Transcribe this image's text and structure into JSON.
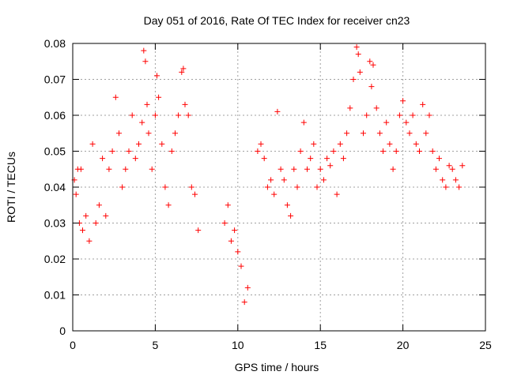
{
  "chart_data": {
    "type": "scatter",
    "title": "Day 051 of 2016, Rate Of TEC Index for receiver cn23",
    "xlabel": "GPS time / hours",
    "ylabel": "ROTI / TECUs",
    "xlim": [
      0,
      25
    ],
    "ylim": [
      0,
      0.08
    ],
    "xticks": [
      0,
      5,
      10,
      15,
      20,
      25
    ],
    "xtick_labels": [
      "0",
      "5",
      "10",
      "15",
      "20",
      "25"
    ],
    "yticks": [
      0,
      0.01,
      0.02,
      0.03,
      0.04,
      0.05,
      0.06,
      0.07,
      0.08
    ],
    "ytick_labels": [
      "0",
      "0.01",
      "0.02",
      "0.03",
      "0.04",
      "0.05",
      "0.06",
      "0.07",
      "0.08"
    ],
    "grid": true,
    "marker": "+",
    "marker_color": "#ff0000",
    "series": [
      {
        "x": [
          0.1,
          0.2,
          0.3,
          0.4,
          0.5,
          0.6,
          0.8,
          1.0,
          1.2,
          1.4,
          1.6,
          1.8,
          2.0,
          2.2,
          2.4,
          2.6,
          2.8,
          3.0,
          3.2,
          3.4,
          3.6,
          3.8,
          4.0,
          4.2,
          4.3,
          4.4,
          4.5,
          4.6,
          4.8,
          5.0,
          5.1,
          5.2,
          5.4,
          5.6,
          5.8,
          6.0,
          6.2,
          6.4,
          6.6,
          6.7,
          6.8,
          7.0,
          7.2,
          7.4,
          7.6,
          9.2,
          9.4,
          9.6,
          9.8,
          10.0,
          10.2,
          10.4,
          10.6,
          11.2,
          11.4,
          11.6,
          11.8,
          12.0,
          12.2,
          12.4,
          12.6,
          12.8,
          13.0,
          13.2,
          13.4,
          13.6,
          13.8,
          14.0,
          14.2,
          14.4,
          14.6,
          14.8,
          15.0,
          15.2,
          15.4,
          15.6,
          15.8,
          16.0,
          16.2,
          16.4,
          16.6,
          16.8,
          17.0,
          17.2,
          17.3,
          17.4,
          17.6,
          17.8,
          18.0,
          18.1,
          18.2,
          18.4,
          18.6,
          18.8,
          19.0,
          19.2,
          19.4,
          19.6,
          19.8,
          20.0,
          20.2,
          20.4,
          20.6,
          20.8,
          21.0,
          21.2,
          21.4,
          21.6,
          21.8,
          22.0,
          22.2,
          22.4,
          22.6,
          22.8,
          23.0,
          23.2,
          23.4,
          23.6
        ],
        "y": [
          0.042,
          0.038,
          0.045,
          0.03,
          0.045,
          0.028,
          0.032,
          0.025,
          0.052,
          0.03,
          0.035,
          0.048,
          0.032,
          0.045,
          0.05,
          0.065,
          0.055,
          0.04,
          0.045,
          0.05,
          0.06,
          0.048,
          0.052,
          0.058,
          0.078,
          0.075,
          0.063,
          0.055,
          0.045,
          0.06,
          0.071,
          0.065,
          0.052,
          0.04,
          0.035,
          0.05,
          0.055,
          0.06,
          0.072,
          0.073,
          0.063,
          0.06,
          0.04,
          0.038,
          0.028,
          0.03,
          0.035,
          0.025,
          0.028,
          0.022,
          0.018,
          0.008,
          0.012,
          0.05,
          0.052,
          0.048,
          0.04,
          0.042,
          0.038,
          0.061,
          0.045,
          0.042,
          0.035,
          0.032,
          0.045,
          0.04,
          0.05,
          0.058,
          0.045,
          0.048,
          0.052,
          0.04,
          0.045,
          0.042,
          0.048,
          0.046,
          0.05,
          0.038,
          0.052,
          0.048,
          0.055,
          0.062,
          0.07,
          0.079,
          0.077,
          0.072,
          0.055,
          0.06,
          0.075,
          0.068,
          0.074,
          0.062,
          0.055,
          0.05,
          0.058,
          0.052,
          0.045,
          0.05,
          0.06,
          0.064,
          0.058,
          0.055,
          0.06,
          0.052,
          0.05,
          0.063,
          0.055,
          0.06,
          0.05,
          0.045,
          0.048,
          0.042,
          0.04,
          0.046,
          0.045,
          0.042,
          0.04,
          0.046
        ]
      }
    ]
  }
}
